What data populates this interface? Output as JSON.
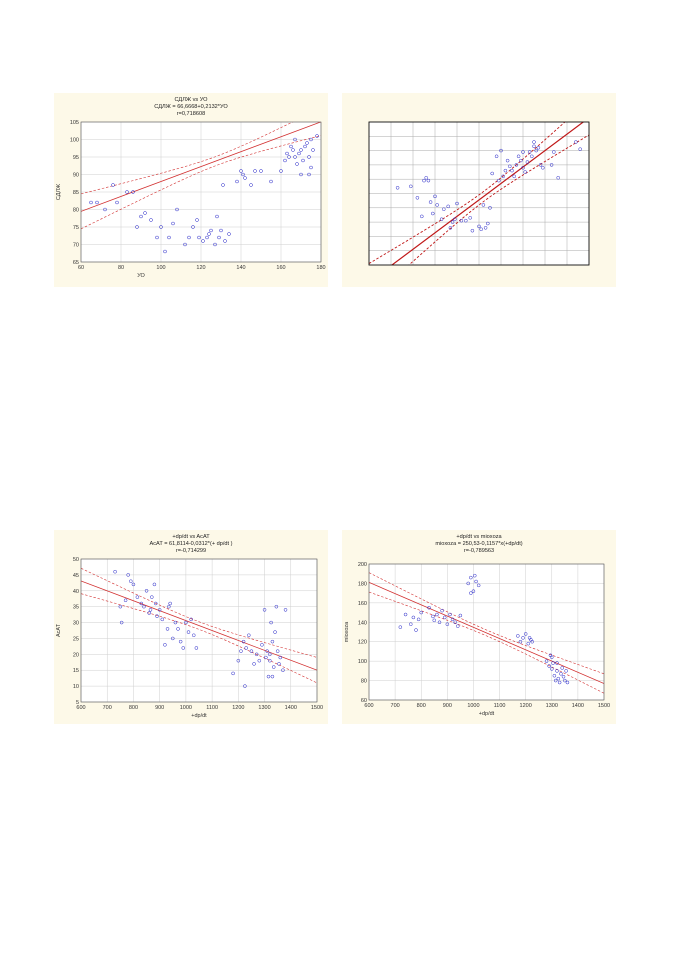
{
  "charts": [
    {
      "title_lines": [
        "СДЛЖ vs УО",
        "СДЛЖ = 66,6668+0,2132*УО",
        "r=0,718608"
      ],
      "chart_data": {
        "type": "scatter",
        "title": "СДЛЖ vs УО",
        "equation": "СДЛЖ = 66,6668+0,2132*УО",
        "r": "r=0,718608",
        "xlabel": "УО",
        "ylabel": "СДЛЖ",
        "xlim": [
          60,
          180
        ],
        "ylim": [
          65,
          105
        ],
        "xticks": [
          "60",
          "80",
          "100",
          "120",
          "140",
          "160",
          "180"
        ],
        "yticks": [
          "65",
          "70",
          "75",
          "80",
          "85",
          "90",
          "95",
          "100",
          "105"
        ],
        "grid": true,
        "points": [
          [
            65,
            82
          ],
          [
            68,
            82
          ],
          [
            72,
            80
          ],
          [
            76,
            87
          ],
          [
            78,
            82
          ],
          [
            83,
            85
          ],
          [
            86,
            85
          ],
          [
            88,
            75
          ],
          [
            90,
            78
          ],
          [
            92,
            79
          ],
          [
            95,
            77
          ],
          [
            98,
            72
          ],
          [
            100,
            75
          ],
          [
            102,
            68
          ],
          [
            104,
            72
          ],
          [
            106,
            76
          ],
          [
            108,
            80
          ],
          [
            112,
            70
          ],
          [
            114,
            72
          ],
          [
            116,
            75
          ],
          [
            118,
            77
          ],
          [
            119,
            72
          ],
          [
            121,
            71
          ],
          [
            123,
            72
          ],
          [
            124,
            73
          ],
          [
            125,
            74
          ],
          [
            127,
            70
          ],
          [
            129,
            72
          ],
          [
            130,
            74
          ],
          [
            132,
            71
          ],
          [
            134,
            73
          ],
          [
            128,
            78
          ],
          [
            131,
            87
          ],
          [
            138,
            88
          ],
          [
            140,
            91
          ],
          [
            141,
            90
          ],
          [
            142,
            89
          ],
          [
            145,
            87
          ],
          [
            147,
            91
          ],
          [
            150,
            91
          ],
          [
            155,
            88
          ],
          [
            160,
            91
          ],
          [
            162,
            94
          ],
          [
            163,
            96
          ],
          [
            164,
            95
          ],
          [
            165,
            98
          ],
          [
            166,
            97
          ],
          [
            167,
            95
          ],
          [
            168,
            93
          ],
          [
            169,
            96
          ],
          [
            170,
            97
          ],
          [
            171,
            94
          ],
          [
            172,
            98
          ],
          [
            173,
            99
          ],
          [
            174,
            95
          ],
          [
            175,
            100
          ],
          [
            176,
            97
          ],
          [
            178,
            101
          ],
          [
            170,
            90
          ],
          [
            174,
            90
          ],
          [
            167,
            100
          ],
          [
            175,
            92
          ]
        ],
        "fit": {
          "intercept": 66.6668,
          "slope": 0.2132
        },
        "band": {
          "center_x": 128,
          "half_center": 1.3,
          "half_edge": 5.0
        }
      }
    },
    {
      "title_lines": [],
      "chart_data": {
        "type": "scatter",
        "xlim": [
          0,
          10
        ],
        "ylim": [
          0,
          10
        ],
        "grid": true,
        "points": [
          [
            1.3,
            5.4
          ],
          [
            1.9,
            5.5
          ],
          [
            2.2,
            4.7
          ],
          [
            2.5,
            5.9
          ],
          [
            2.6,
            6.1
          ],
          [
            2.7,
            5.9
          ],
          [
            2.8,
            4.4
          ],
          [
            3.0,
            4.8
          ],
          [
            2.4,
            3.4
          ],
          [
            2.9,
            3.6
          ],
          [
            3.1,
            4.2
          ],
          [
            3.3,
            3.2
          ],
          [
            3.4,
            3.9
          ],
          [
            3.6,
            4.1
          ],
          [
            3.7,
            2.6
          ],
          [
            3.9,
            3.2
          ],
          [
            4.0,
            4.3
          ],
          [
            4.2,
            3.1
          ],
          [
            4.4,
            3.1
          ],
          [
            4.6,
            3.3
          ],
          [
            4.7,
            2.4
          ],
          [
            3.8,
            3.0
          ],
          [
            5.0,
            2.7
          ],
          [
            5.1,
            2.5
          ],
          [
            5.3,
            2.6
          ],
          [
            5.2,
            4.2
          ],
          [
            5.4,
            2.9
          ],
          [
            5.5,
            4.0
          ],
          [
            5.6,
            6.4
          ],
          [
            5.8,
            7.6
          ],
          [
            5.9,
            5.9
          ],
          [
            6.1,
            6.2
          ],
          [
            6.2,
            6.6
          ],
          [
            6.3,
            7.3
          ],
          [
            6.4,
            6.9
          ],
          [
            6.5,
            6.6
          ],
          [
            6.6,
            6.2
          ],
          [
            6.7,
            7.0
          ],
          [
            6.8,
            7.6
          ],
          [
            6.9,
            7.3
          ],
          [
            7.0,
            7.9
          ],
          [
            7.0,
            6.8
          ],
          [
            7.1,
            6.5
          ],
          [
            7.2,
            7.2
          ],
          [
            7.3,
            7.9
          ],
          [
            7.4,
            7.6
          ],
          [
            7.5,
            8.3
          ],
          [
            7.6,
            8.0
          ],
          [
            7.7,
            8.2
          ],
          [
            7.8,
            7.0
          ],
          [
            7.9,
            6.8
          ],
          [
            8.3,
            7.0
          ],
          [
            8.4,
            7.9
          ],
          [
            8.6,
            6.1
          ],
          [
            6.0,
            8.0
          ],
          [
            7.5,
            8.6
          ],
          [
            9.4,
            8.6
          ],
          [
            9.6,
            8.1
          ]
        ],
        "fit": {
          "intercept": -1.2,
          "slope": 1.15
        },
        "band": {
          "center_x": 5.2,
          "half_center": 0.35,
          "half_edge": 1.3
        }
      }
    },
    {
      "title_lines": [
        "+dp/dt vs  AcAT",
        "AcAT = 61,8114-0,0312*(+   dp/dt )",
        "r=-0,714299"
      ],
      "chart_data": {
        "type": "scatter",
        "title": "+dp/dt vs  AcAT",
        "equation": "AcAT = 61,8114-0,0312*(+   dp/dt )",
        "r": "r=-0,714299",
        "xlabel": "+dp/dt",
        "ylabel": "AcAT",
        "xlim": [
          600,
          1500
        ],
        "ylim": [
          5,
          50
        ],
        "xticks": [
          "600",
          "700",
          "800",
          "900",
          "1000",
          "1100",
          "1200",
          "1300",
          "1400",
          "1500"
        ],
        "yticks": [
          "5",
          "10",
          "15",
          "20",
          "25",
          "30",
          "35",
          "40",
          "45",
          "50"
        ],
        "grid": true,
        "points": [
          [
            730,
            46
          ],
          [
            750,
            35
          ],
          [
            755,
            30
          ],
          [
            770,
            37
          ],
          [
            780,
            45
          ],
          [
            790,
            43
          ],
          [
            800,
            42
          ],
          [
            815,
            38
          ],
          [
            830,
            36
          ],
          [
            840,
            35
          ],
          [
            850,
            40
          ],
          [
            860,
            33
          ],
          [
            865,
            34
          ],
          [
            870,
            38
          ],
          [
            880,
            42
          ],
          [
            885,
            36
          ],
          [
            890,
            32
          ],
          [
            900,
            34
          ],
          [
            910,
            31
          ],
          [
            920,
            23
          ],
          [
            930,
            28
          ],
          [
            935,
            35
          ],
          [
            940,
            36
          ],
          [
            950,
            25
          ],
          [
            960,
            30
          ],
          [
            970,
            28
          ],
          [
            980,
            24
          ],
          [
            990,
            22
          ],
          [
            1000,
            30
          ],
          [
            1010,
            27
          ],
          [
            1020,
            31
          ],
          [
            1030,
            26
          ],
          [
            1040,
            22
          ],
          [
            1180,
            14
          ],
          [
            1200,
            18
          ],
          [
            1210,
            21
          ],
          [
            1220,
            24
          ],
          [
            1225,
            10
          ],
          [
            1230,
            22
          ],
          [
            1240,
            26
          ],
          [
            1250,
            21
          ],
          [
            1260,
            17
          ],
          [
            1270,
            20
          ],
          [
            1280,
            18
          ],
          [
            1290,
            23
          ],
          [
            1300,
            34
          ],
          [
            1305,
            19
          ],
          [
            1310,
            21
          ],
          [
            1315,
            13
          ],
          [
            1320,
            18
          ],
          [
            1325,
            30
          ],
          [
            1330,
            24
          ],
          [
            1335,
            16
          ],
          [
            1340,
            27
          ],
          [
            1345,
            35
          ],
          [
            1350,
            21
          ],
          [
            1355,
            17
          ],
          [
            1360,
            19
          ],
          [
            1370,
            15
          ],
          [
            1380,
            34
          ],
          [
            1330,
            13
          ],
          [
            1320,
            20
          ]
        ],
        "fit": {
          "intercept": 61.8114,
          "slope": -0.0312
        },
        "band": {
          "center_x": 1050,
          "half_center": 1.2,
          "half_edge": 4.0
        }
      }
    },
    {
      "title_lines": [
        "+dp/dt vs mioxoza",
        "mioxoza = 250,53-0,1157*x(+dp/dt)",
        "r=-0,789563"
      ],
      "chart_data": {
        "type": "scatter",
        "title": "+dp/dt vs mioxoza",
        "equation": "mioxoza = 250,53-0,1157*x(+dp/dt)",
        "r": "r=-0,789563",
        "xlabel": "+dp/dt",
        "ylabel": "mioxoza",
        "xlim": [
          600,
          1500
        ],
        "ylim": [
          60,
          200
        ],
        "xticks": [
          "600",
          "700",
          "800",
          "900",
          "1000",
          "1100",
          "1200",
          "1300",
          "1400",
          "1500"
        ],
        "yticks": [
          "60",
          "80",
          "100",
          "120",
          "140",
          "160",
          "180",
          "200"
        ],
        "grid": true,
        "points": [
          [
            720,
            135
          ],
          [
            740,
            148
          ],
          [
            760,
            138
          ],
          [
            770,
            145
          ],
          [
            780,
            132
          ],
          [
            790,
            143
          ],
          [
            800,
            150
          ],
          [
            830,
            155
          ],
          [
            845,
            146
          ],
          [
            850,
            142
          ],
          [
            860,
            148
          ],
          [
            870,
            140
          ],
          [
            880,
            152
          ],
          [
            890,
            145
          ],
          [
            900,
            138
          ],
          [
            910,
            148
          ],
          [
            920,
            143
          ],
          [
            930,
            140
          ],
          [
            940,
            136
          ],
          [
            950,
            147
          ],
          [
            980,
            180
          ],
          [
            990,
            186
          ],
          [
            1000,
            172
          ],
          [
            1005,
            188
          ],
          [
            1010,
            182
          ],
          [
            1020,
            178
          ],
          [
            990,
            170
          ],
          [
            1170,
            126
          ],
          [
            1180,
            120
          ],
          [
            1190,
            124
          ],
          [
            1200,
            128
          ],
          [
            1210,
            118
          ],
          [
            1215,
            124
          ],
          [
            1220,
            122
          ],
          [
            1225,
            120
          ],
          [
            1280,
            100
          ],
          [
            1290,
            95
          ],
          [
            1295,
            106
          ],
          [
            1300,
            92
          ],
          [
            1305,
            98
          ],
          [
            1310,
            85
          ],
          [
            1315,
            80
          ],
          [
            1320,
            90
          ],
          [
            1325,
            82
          ],
          [
            1330,
            78
          ],
          [
            1335,
            87
          ],
          [
            1340,
            93
          ],
          [
            1345,
            84
          ],
          [
            1350,
            80
          ],
          [
            1355,
            90
          ],
          [
            1360,
            78
          ],
          [
            1300,
            104
          ],
          [
            1320,
            98
          ]
        ],
        "fit": {
          "intercept": 250.53,
          "slope": -0.1157
        },
        "band": {
          "center_x": 1050,
          "half_center": 3.0,
          "half_edge": 10.0
        }
      }
    }
  ]
}
